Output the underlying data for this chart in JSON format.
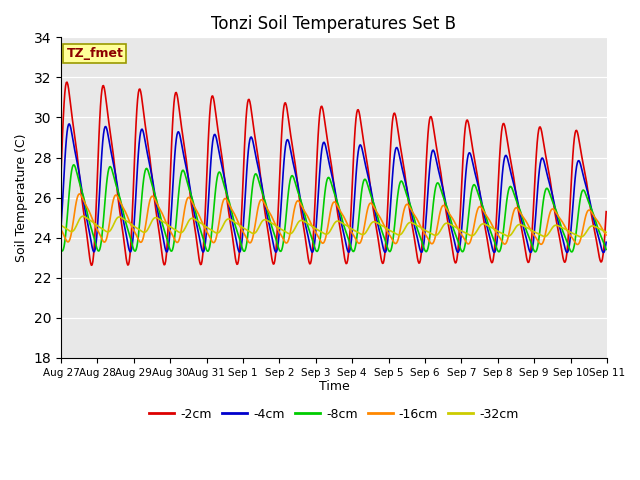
{
  "title": "Tonzi Soil Temperatures Set B",
  "xlabel": "Time",
  "ylabel": "Soil Temperature (C)",
  "ylim": [
    18,
    34
  ],
  "yticks": [
    18,
    20,
    22,
    24,
    26,
    28,
    30,
    32,
    34
  ],
  "bg_color": "#e8e8e8",
  "annotation_text": "TZ_fmet",
  "annotation_color": "#8b0000",
  "annotation_bg": "#ffff99",
  "annotation_border": "#999900",
  "x_tick_labels": [
    "Aug 27",
    "Aug 28",
    "Aug 29",
    "Aug 30",
    "Aug 31",
    "Sep 1",
    "Sep 2",
    "Sep 3",
    "Sep 4",
    "Sep 5",
    "Sep 6",
    "Sep 7",
    "Sep 8",
    "Sep 9",
    "Sep 10",
    "Sep 11"
  ],
  "legend_labels": [
    "-2cm",
    "-4cm",
    "-8cm",
    "-16cm",
    "-32cm"
  ],
  "legend_colors": [
    "#dd0000",
    "#0000cc",
    "#00cc00",
    "#ff8800",
    "#cccc00"
  ],
  "n_days": 15,
  "pts_per_day": 48
}
